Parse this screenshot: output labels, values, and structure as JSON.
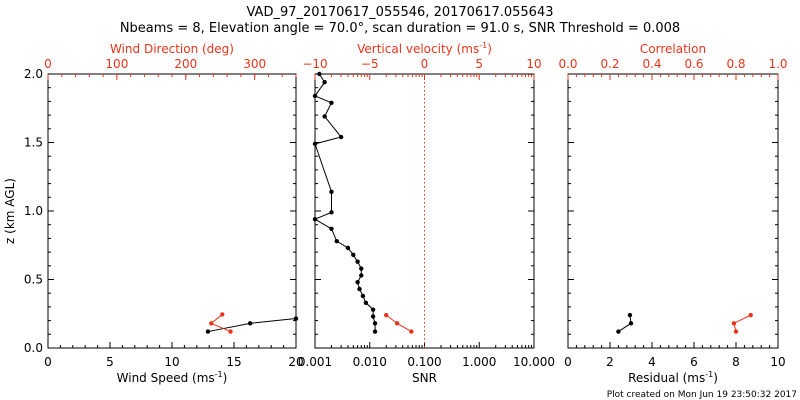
{
  "title_line1": "VAD_97_20170617_055546, 20170617.055643",
  "title_line2": "Nbeams = 8, Elevation angle = 70.0°, scan duration = 91.0 s, SNR Threshold = 0.008",
  "footer": "Plot created on Mon Jun 19 23:50:32 2017",
  "colors": {
    "primary": "#000000",
    "secondary": "#e8341c"
  },
  "chart_data": [
    {
      "type": "line",
      "panel": "left",
      "ylabel": "z (km AGL)",
      "ylim": [
        0,
        2.0
      ],
      "y_ticks": [
        "0.0",
        "0.5",
        "1.0",
        "1.5",
        "2.0"
      ],
      "bottom_axis": {
        "label": "Wind Speed (ms",
        "label_sup": "-1",
        "label_end": ")",
        "range": [
          0,
          20
        ],
        "ticks": [
          {
            "v": 0,
            "t": "0"
          },
          {
            "v": 5,
            "t": "5"
          },
          {
            "v": 10,
            "t": "10"
          },
          {
            "v": 15,
            "t": "15"
          },
          {
            "v": 20,
            "t": "20"
          }
        ]
      },
      "top_axis": {
        "label": "Wind Direction (deg)",
        "label_sup": "",
        "label_end": "",
        "range": [
          0,
          360
        ],
        "ticks": [
          {
            "v": 0,
            "t": "0"
          },
          {
            "v": 100,
            "t": "100"
          },
          {
            "v": 200,
            "t": "200"
          },
          {
            "v": 300,
            "t": "300"
          }
        ]
      },
      "series": [
        {
          "axis": "bottom",
          "color": "#000000",
          "x": [
            12.9,
            16.3,
            20.0
          ],
          "y": [
            0.12,
            0.18,
            0.215
          ]
        },
        {
          "axis": "top",
          "color": "#e8341c",
          "x": [
            265,
            237,
            253
          ],
          "y": [
            0.12,
            0.18,
            0.245
          ]
        }
      ]
    },
    {
      "type": "line",
      "panel": "middle",
      "bottom_axis": {
        "label": "SNR",
        "label_sup": "",
        "label_end": "",
        "scale": "log",
        "range": [
          0.001,
          10
        ],
        "ticks": [
          {
            "v": 0.001,
            "t": "0.001"
          },
          {
            "v": 0.01,
            "t": "0.010"
          },
          {
            "v": 0.1,
            "t": "0.100"
          },
          {
            "v": 1,
            "t": "1.000"
          },
          {
            "v": 10,
            "t": "10.000"
          }
        ]
      },
      "top_axis": {
        "label": "Vertical velocity (ms",
        "label_sup": "-1",
        "label_end": ")",
        "range": [
          -10,
          10
        ],
        "ticks": [
          {
            "v": -10,
            "t": "−10"
          },
          {
            "v": -5,
            "t": "−5"
          },
          {
            "v": 0,
            "t": "0"
          },
          {
            "v": 5,
            "t": "5"
          },
          {
            "v": 10,
            "t": "10"
          }
        ],
        "reference_line": 0
      },
      "series": [
        {
          "axis": "bottom",
          "color": "#000000",
          "x": [
            0.0125,
            0.0125,
            0.0115,
            0.0115,
            0.0085,
            0.0075,
            0.0065,
            0.006,
            0.007,
            0.007,
            0.006,
            0.005,
            0.004,
            0.0025,
            0.002,
            0.001,
            0.002,
            0.002,
            0.001,
            0.003,
            0.0015,
            0.002,
            0.001,
            0.0015,
            0.0012
          ],
          "y": [
            0.12,
            0.18,
            0.23,
            0.28,
            0.33,
            0.38,
            0.43,
            0.48,
            0.53,
            0.58,
            0.63,
            0.68,
            0.73,
            0.78,
            0.87,
            0.94,
            0.99,
            1.14,
            1.49,
            1.54,
            1.69,
            1.79,
            1.84,
            1.94,
            2.0
          ]
        },
        {
          "axis": "top",
          "color": "#e8341c",
          "x": [
            -1.2,
            -2.5,
            -3.5
          ],
          "y": [
            0.12,
            0.18,
            0.24
          ]
        }
      ]
    },
    {
      "type": "line",
      "panel": "right",
      "bottom_axis": {
        "label": "Residual (ms",
        "label_sup": "-1",
        "label_end": ")",
        "range": [
          0,
          10
        ],
        "ticks": [
          {
            "v": 0,
            "t": "0"
          },
          {
            "v": 2,
            "t": "2"
          },
          {
            "v": 4,
            "t": "4"
          },
          {
            "v": 6,
            "t": "6"
          },
          {
            "v": 8,
            "t": "8"
          },
          {
            "v": 10,
            "t": "10"
          }
        ]
      },
      "top_axis": {
        "label": "Correlation",
        "label_sup": "",
        "label_end": "",
        "range": [
          0,
          1.0
        ],
        "ticks": [
          {
            "v": 0.0,
            "t": "0.0"
          },
          {
            "v": 0.2,
            "t": "0.2"
          },
          {
            "v": 0.4,
            "t": "0.4"
          },
          {
            "v": 0.6,
            "t": "0.6"
          },
          {
            "v": 0.8,
            "t": "0.8"
          },
          {
            "v": 1.0,
            "t": "1.0"
          }
        ]
      },
      "series": [
        {
          "axis": "bottom",
          "color": "#000000",
          "x": [
            2.4,
            3.0,
            2.95
          ],
          "y": [
            0.12,
            0.18,
            0.24
          ]
        },
        {
          "axis": "top",
          "color": "#e8341c",
          "x": [
            0.8,
            0.79,
            0.87
          ],
          "y": [
            0.12,
            0.18,
            0.24
          ]
        }
      ]
    }
  ]
}
